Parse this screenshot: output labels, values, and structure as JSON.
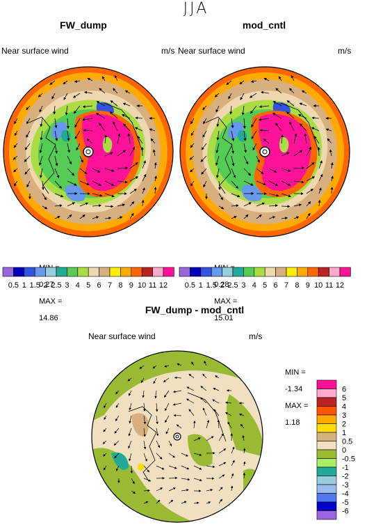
{
  "season": "JJA",
  "panels": [
    {
      "title": "FW_dump",
      "subtitle": "Near surface wind",
      "units": "m/s",
      "min_label": "MIN =",
      "min_value": "0.27",
      "max_label": "MAX =",
      "max_value": "14.86"
    },
    {
      "title": "mod_cntl",
      "subtitle": "Near surface wind",
      "units": "m/s",
      "min_label": "MIN =",
      "min_value": "0.28",
      "max_label": "MAX =",
      "max_value": "15.01"
    }
  ],
  "diff_panel": {
    "title": "FW_dump - mod_cntl",
    "subtitle": "Near surface wind",
    "units": "m/s",
    "min_label": "MIN =",
    "min_value": "-1.34",
    "max_label": "MAX =",
    "max_value": "1.18"
  },
  "colorbar": {
    "labels": [
      "0.5",
      "1",
      "1.5",
      "2",
      "2.5",
      "3",
      "4",
      "5",
      "6",
      "7",
      "8",
      "9",
      "10",
      "11",
      "12"
    ],
    "colors": [
      "#9966dd",
      "#0000bb",
      "#3355dd",
      "#6699ee",
      "#99ccdd",
      "#22aa99",
      "#55cc55",
      "#aadd44",
      "#eed8b0",
      "#d8b080",
      "#ffee00",
      "#ffaa00",
      "#ff6600",
      "#bb2222",
      "#ffaacc",
      "#ff1199"
    ]
  },
  "diff_colorbar": {
    "labels": [
      "6",
      "5",
      "4",
      "3",
      "2",
      "1",
      "0.5",
      "0",
      "-0.5",
      "-1",
      "-2",
      "-3",
      "-4",
      "-5",
      "-6"
    ],
    "colors": [
      "#ff1199",
      "#ffaacc",
      "#bb2222",
      "#ff5500",
      "#ffaa00",
      "#ffdd00",
      "#d8b080",
      "#f0e0c0",
      "#99bb33",
      "#aaee66",
      "#22aa99",
      "#99ccdd",
      "#99bbee",
      "#5577ee",
      "#0000cc",
      "#9966dd"
    ]
  }
}
